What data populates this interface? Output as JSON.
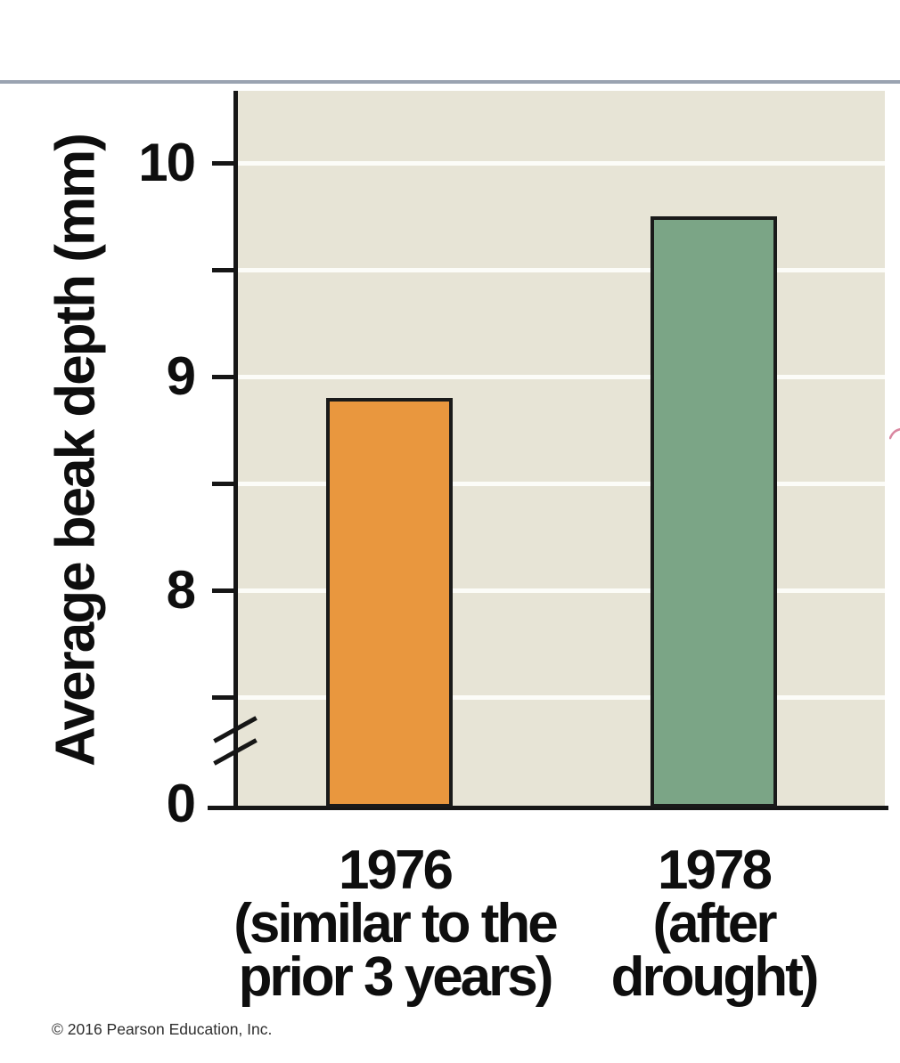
{
  "figure": {
    "copyright": "© 2016 Pearson Education, Inc."
  },
  "chart_data": {
    "type": "bar",
    "title": "",
    "xlabel": "",
    "ylabel": "Average beak depth (mm)",
    "categories": [
      "1976 (similar to the prior 3 years)",
      "1978 (after drought)"
    ],
    "values": [
      8.9,
      9.75
    ],
    "bar_colors": [
      "#e9973e",
      "#7ba586"
    ],
    "panel_color": "#e7e4d6",
    "y_tick_labels": [
      "10",
      "9",
      "8",
      "0"
    ],
    "y_ticks_labeled_values": [
      10,
      9,
      8,
      0
    ],
    "y_ticks_unlabeled_values": [
      9.5,
      8.5,
      7.5
    ],
    "axis_break_between": [
      0,
      7.5
    ],
    "ylim_display": [
      7.5,
      10.35
    ],
    "grid": "horizontal white gridlines on beige panel",
    "legend_position": "none",
    "x_labels": [
      {
        "lines": [
          "1976",
          "(similar to the",
          "prior 3 years)"
        ]
      },
      {
        "lines": [
          "1978",
          "(after",
          "drought)"
        ]
      }
    ]
  }
}
